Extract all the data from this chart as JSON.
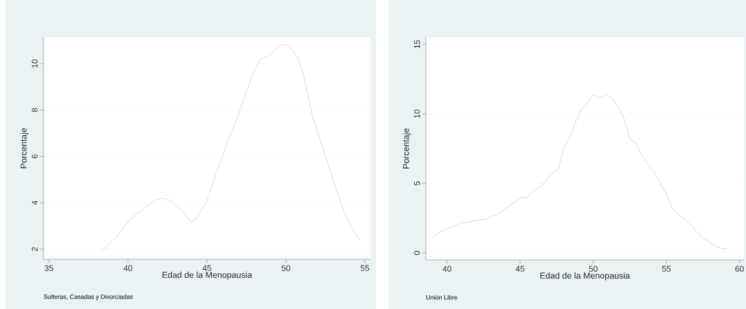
{
  "chart_data": [
    {
      "type": "line",
      "xlabel": "Edad de la Menopausia",
      "ylabel": "Porcentaje",
      "annotations": [
        "Solteras, Casadas y Divorciadas"
      ],
      "color": "#c6d3df",
      "grid": "y",
      "x": [
        38.3,
        38.7,
        39.4,
        40.0,
        40.7,
        41.25,
        41.7,
        42.2,
        42.7,
        43.3,
        44.0,
        44.3,
        45.0,
        45.65,
        46.3,
        47.1,
        47.6,
        48.0,
        48.4,
        48.9,
        49.3,
        49.7,
        50.0,
        50.4,
        50.75,
        51.1,
        51.65,
        52.1,
        52.55,
        53.2,
        53.7,
        54.2,
        54.7
      ],
      "values": [
        1.85,
        2.16,
        2.62,
        3.19,
        3.6,
        3.85,
        4.1,
        4.2,
        4.1,
        3.75,
        3.16,
        3.29,
        4.06,
        5.4,
        6.6,
        8.0,
        9.0,
        9.7,
        10.2,
        10.33,
        10.57,
        10.8,
        10.83,
        10.6,
        10.26,
        9.54,
        7.83,
        6.85,
        5.92,
        4.53,
        3.6,
        2.88,
        2.36
      ],
      "xlim": [
        34.65,
        55.36
      ],
      "ylim": [
        1.56,
        11.14
      ],
      "xticks": [
        35,
        40,
        45,
        50,
        55
      ],
      "yticks": [
        2,
        4,
        6,
        8,
        10
      ]
    },
    {
      "type": "line",
      "xlabel": "Edad de la Menopausia",
      "ylabel": "Porcentaje",
      "annotations": [
        "Unión Libre"
      ],
      "color": "#c6d3df",
      "grid": "y",
      "x": [
        38.95,
        39.35,
        40.16,
        40.56,
        40.97,
        41.37,
        41.77,
        42.18,
        42.66,
        43.06,
        43.38,
        43.87,
        44.27,
        44.75,
        45.08,
        45.48,
        45.88,
        46.29,
        46.69,
        47.17,
        47.57,
        47.98,
        48.38,
        48.78,
        49.19,
        49.59,
        50.04,
        50.44,
        50.85,
        51.28,
        51.68,
        52.09,
        52.49,
        52.89,
        53.29,
        53.78,
        54.18,
        54.58,
        54.99,
        55.39,
        55.79,
        56.2,
        56.6,
        57.0,
        57.4,
        57.81,
        58.29,
        58.7,
        59.1
      ],
      "values": [
        1.05,
        1.39,
        1.85,
        1.98,
        2.19,
        2.19,
        2.29,
        2.36,
        2.41,
        2.69,
        2.73,
        3.08,
        3.42,
        3.71,
        3.98,
        3.98,
        4.47,
        4.66,
        5.12,
        5.71,
        5.97,
        7.49,
        8.29,
        9.36,
        10.37,
        10.76,
        11.39,
        11.14,
        11.44,
        11.14,
        10.54,
        9.69,
        8.22,
        7.92,
        7.03,
        6.31,
        5.8,
        5.0,
        4.27,
        3.2,
        2.83,
        2.46,
        2.07,
        1.64,
        1.14,
        0.88,
        0.54,
        0.34,
        0.29
      ],
      "xlim": [
        38.55,
        60.3
      ],
      "ylim": [
        -0.51,
        15.51
      ],
      "xticks": [
        40,
        45,
        50,
        55,
        60
      ],
      "yticks": [
        0,
        5,
        10,
        15
      ]
    }
  ]
}
